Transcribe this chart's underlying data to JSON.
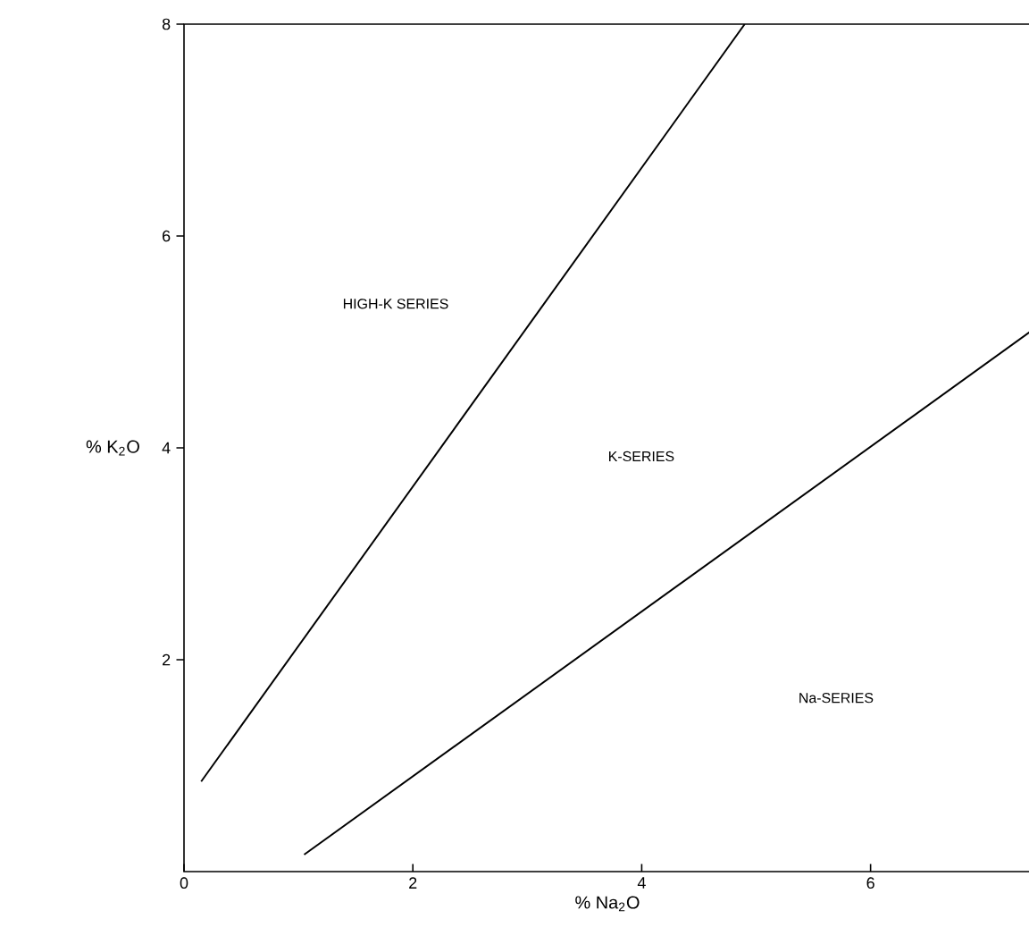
{
  "chart_data": {
    "type": "line",
    "xlabel": "% Na$_{2}$O",
    "ylabel": "% K$_{2}$O",
    "xlim": [
      0,
      7.4
    ],
    "ylim": [
      0,
      8
    ],
    "xticks": [
      0,
      2,
      4,
      6
    ],
    "yticks": [
      2,
      4,
      6,
      8
    ],
    "series": [
      {
        "color": "#000000",
        "x": [
          0.15,
          4.9
        ],
        "values": [
          0.85,
          8
        ]
      },
      {
        "color": "#000000",
        "x": [
          1.05,
          7.4
        ],
        "values": [
          0.16,
          5.1
        ]
      }
    ],
    "annotations": [
      "HIGH-K SERIES",
      "K-SERIES",
      "Na-SERIES"
    ]
  }
}
